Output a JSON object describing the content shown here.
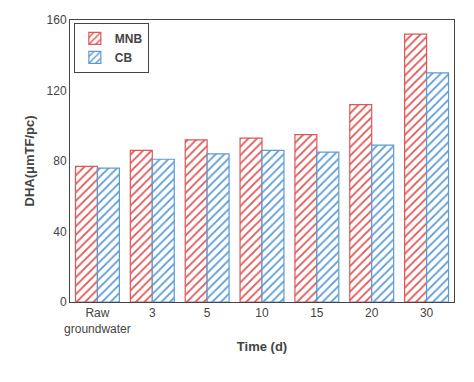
{
  "chart_data": {
    "type": "bar",
    "categories": [
      "Raw\ngroundwater",
      "3",
      "5",
      "10",
      "15",
      "20",
      "30"
    ],
    "series": [
      {
        "name": "MNB",
        "color": "#e05555",
        "values": [
          77,
          86,
          92,
          93,
          95,
          112,
          152
        ]
      },
      {
        "name": "CB",
        "color": "#5b9bd5",
        "values": [
          76,
          81,
          84,
          86,
          85,
          89,
          130
        ]
      }
    ],
    "xlabel": "Time (d)",
    "ylabel": "DHA(μmTF/pc)",
    "ylim": [
      0,
      160
    ],
    "yticks": [
      0,
      40,
      80,
      120,
      160
    ],
    "grid": false,
    "legend": "upper left"
  }
}
